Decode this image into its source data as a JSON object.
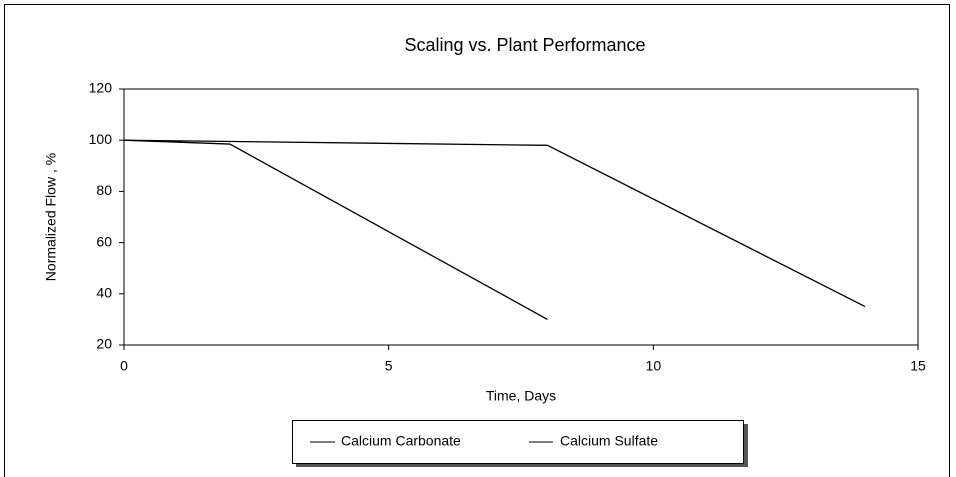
{
  "chart_data": {
    "type": "line",
    "title": "Scaling vs. Plant Performance",
    "x_label": "Time, Days",
    "y_label": "Normalized Flow , %",
    "xlim": [
      0,
      15
    ],
    "xticks": [
      0,
      5,
      10,
      15
    ],
    "ylim": [
      20,
      120
    ],
    "yticks": [
      20,
      40,
      60,
      80,
      100,
      120
    ],
    "grid": false,
    "legend": "bottom",
    "series": [
      {
        "name": "Calcium Carbonate",
        "color": "#000000",
        "x": [
          0,
          2,
          8
        ],
        "values": [
          100,
          98.5,
          30
        ]
      },
      {
        "name": "Calcium Sulfate",
        "color": "#000000",
        "x": [
          0,
          8,
          14
        ],
        "values": [
          100,
          98,
          35
        ]
      }
    ]
  }
}
